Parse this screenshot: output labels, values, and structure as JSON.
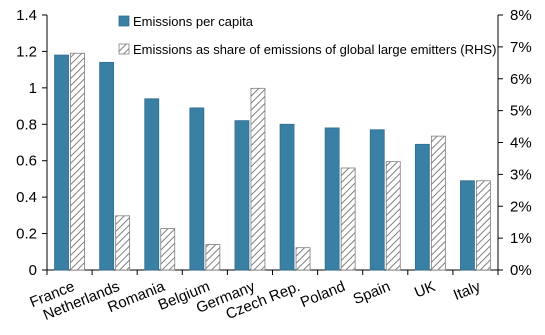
{
  "chart_data": {
    "type": "bar",
    "categories": [
      "France",
      "Netherlands",
      "Romania",
      "Belgium",
      "Germany",
      "Czech Rep.",
      "Poland",
      "Spain",
      "UK",
      "Italy"
    ],
    "series": [
      {
        "name": "Emissions per capita",
        "axis": "left",
        "color": "#3a7fa4",
        "values": [
          1.18,
          1.14,
          0.94,
          0.89,
          0.82,
          0.8,
          0.78,
          0.77,
          0.69,
          0.49
        ]
      },
      {
        "name": "Emissions as share of emissions of global large emitters (RHS)",
        "axis": "right",
        "color": "#ffffff",
        "pattern": "diagonal-hatch",
        "values": [
          6.8,
          1.7,
          1.3,
          0.8,
          5.7,
          0.7,
          3.2,
          3.4,
          4.2,
          2.8
        ]
      }
    ],
    "yleft": {
      "ylim": [
        0,
        1.4
      ],
      "ticks": [
        "0",
        "0.2",
        "0.4",
        "0.6",
        "0.8",
        "1",
        "1.2",
        "1.4"
      ]
    },
    "yright": {
      "ylim": [
        0,
        8
      ],
      "ticks": [
        "0%",
        "1%",
        "2%",
        "3%",
        "4%",
        "5%",
        "6%",
        "7%",
        "8%"
      ]
    },
    "legend_position": "top",
    "grid": false
  }
}
